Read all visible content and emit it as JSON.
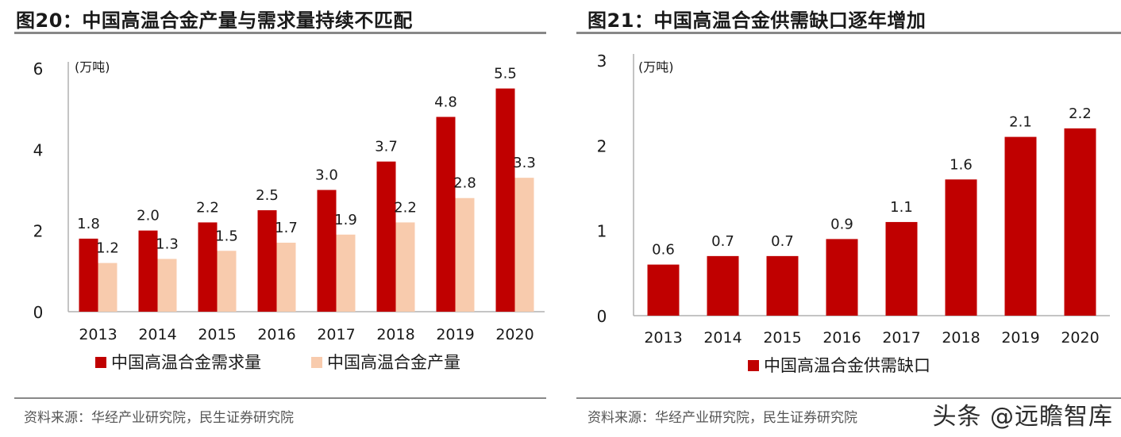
{
  "panels": [
    {
      "title": "图20：中国高温合金产量与需求量持续不匹配",
      "source": "资料来源：华经产业研究院，民生证券研究院"
    },
    {
      "title": "图21：中国高温合金供需缺口逐年增加",
      "source": "资料来源：华经产业研究院，民生证券研究院"
    }
  ],
  "watermark": "头条 @远瞻智库",
  "colors": {
    "demand": "#c00000",
    "production": "#f8cbad",
    "axis": "#b0b0b0",
    "rule": "#888888"
  },
  "chart_data": [
    {
      "type": "bar",
      "title": "图20：中国高温合金产量与需求量持续不匹配",
      "unit": "(万吨)",
      "categories": [
        "2013",
        "2014",
        "2015",
        "2016",
        "2017",
        "2018",
        "2019",
        "2020"
      ],
      "series": [
        {
          "name": "中国高温合金需求量",
          "values": [
            1.8,
            2.0,
            2.2,
            2.5,
            3.0,
            3.7,
            4.8,
            5.5
          ],
          "labels": [
            "1.8",
            "2.0",
            "2.2",
            "2.5",
            "3.0",
            "3.7",
            "4.8",
            "5.5"
          ],
          "color": "#c00000"
        },
        {
          "name": "中国高温合金产量",
          "values": [
            1.2,
            1.3,
            1.5,
            1.7,
            1.9,
            2.2,
            2.8,
            3.3
          ],
          "labels": [
            "1.2",
            "1.3",
            "1.5",
            "1.7",
            "1.9",
            "2.2",
            "2.8",
            "3.3"
          ],
          "color": "#f8cbad"
        }
      ],
      "ylim": [
        0,
        6
      ],
      "yticks": [
        "0",
        "2",
        "4",
        "6"
      ],
      "legend": "bottom",
      "grid": false
    },
    {
      "type": "bar",
      "title": "图21：中国高温合金供需缺口逐年增加",
      "unit": "(万吨)",
      "categories": [
        "2013",
        "2014",
        "2015",
        "2016",
        "2017",
        "2018",
        "2019",
        "2020"
      ],
      "series": [
        {
          "name": "中国高温合金供需缺口",
          "values": [
            0.6,
            0.7,
            0.7,
            0.9,
            1.1,
            1.6,
            2.1,
            2.2
          ],
          "labels": [
            "0.6",
            "0.7",
            "0.7",
            "0.9",
            "1.1",
            "1.6",
            "2.1",
            "2.2"
          ],
          "color": "#c00000"
        }
      ],
      "ylim": [
        0,
        3
      ],
      "yticks": [
        "0",
        "1",
        "2",
        "3"
      ],
      "legend": "bottom",
      "grid": false
    }
  ]
}
